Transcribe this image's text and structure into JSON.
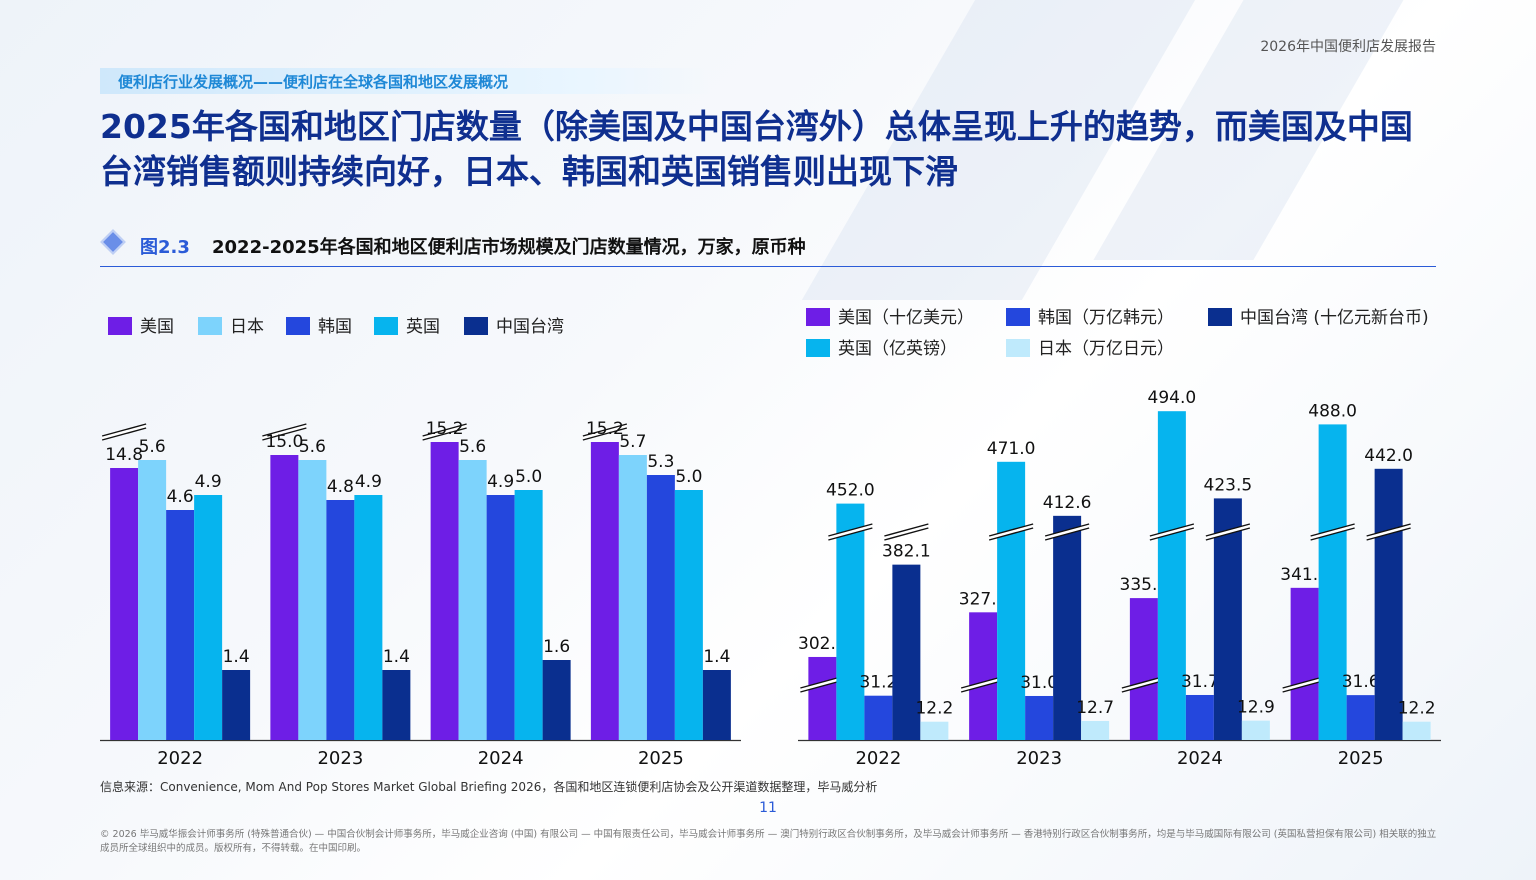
{
  "header": {
    "report_title": "2026年中国便利店发展报告"
  },
  "section_label": "便利店行业发展概况——便利店在全球各国和地区发展概况",
  "headline": "2025年各国和地区门店数量（除美国及中国台湾外）总体呈现上升的趋势，而美国及中国台湾销售额则持续向好，日本、韩国和英国销售则出现下滑",
  "figure": {
    "number": "图2.3",
    "title": "2022-2025年各国和地区便利店市场规模及门店数量情况，万家，原币种"
  },
  "source": "信息来源：Convenience, Mom And Pop Stores Market Global Briefing 2026，各国和地区连锁便利店协会及公开渠道数据整理，毕马威分析",
  "page_number": "11",
  "footer": "© 2026 毕马威华振会计师事务所 (特殊普通合伙) — 中国合伙制会计师事务所，毕马威企业咨询 (中国) 有限公司 — 中国有限责任公司，毕马威会计师事务所 — 澳门特别行政区合伙制事务所，及毕马威会计师事务所 — 香港特别行政区合伙制事务所，均是与毕马威国际有限公司 (英国私营担保有限公司) 相关联的独立成员所全球组织中的成员。版权所有，不得转载。在中国印刷。",
  "chart_data": [
    {
      "type": "bar",
      "categories": [
        "2022",
        "2023",
        "2024",
        "2025"
      ],
      "broken_axis_series": [
        "美国"
      ],
      "series": [
        {
          "name": "美国",
          "color": "#6e1ee6",
          "values": [
            14.8,
            15.0,
            15.2,
            15.2
          ]
        },
        {
          "name": "日本",
          "color": "#7dd3fc",
          "values": [
            5.6,
            5.6,
            5.6,
            5.7
          ]
        },
        {
          "name": "韩国",
          "color": "#2447dd",
          "values": [
            4.6,
            4.8,
            4.9,
            5.3
          ]
        },
        {
          "name": "英国",
          "color": "#06b4ee",
          "values": [
            4.9,
            4.9,
            5.0,
            5.0
          ]
        },
        {
          "name": "中国台湾",
          "color": "#0a2f8f",
          "values": [
            1.4,
            1.4,
            1.6,
            1.4
          ]
        }
      ],
      "value_labels": [
        [
          "14.8",
          "15.0",
          "15.2",
          "15.2"
        ],
        [
          "5.6",
          "5.6",
          "5.6",
          "5.7"
        ],
        [
          "4.6",
          "4.8",
          "4.9",
          "5.3"
        ],
        [
          "4.9",
          "4.9",
          "5.0",
          "5.0"
        ],
        [
          "1.4",
          "1.4",
          "1.6",
          "1.4"
        ]
      ]
    },
    {
      "type": "bar",
      "categories": [
        "2022",
        "2023",
        "2024",
        "2025"
      ],
      "broken_axis_series": [
        "美国（十亿美元）",
        "英国（亿英镑）",
        "中国台湾 (十亿元新台币)"
      ],
      "series": [
        {
          "name": "美国（十亿美元）",
          "color": "#6e1ee6",
          "values": [
            302.8,
            327.6,
            335.5,
            341.2
          ]
        },
        {
          "name": "英国（亿英镑）",
          "color": "#06b4ee",
          "values": [
            452.0,
            471.0,
            494.0,
            488.0
          ]
        },
        {
          "name": "韩国（万亿韩元）",
          "color": "#2447dd",
          "values": [
            31.2,
            31.0,
            31.7,
            31.6
          ]
        },
        {
          "name": "日本（万亿日元）",
          "color": "#bfeafc",
          "values": [
            12.2,
            12.7,
            12.9,
            12.2
          ]
        },
        {
          "name": "中国台湾 (十亿元新台币)",
          "color": "#0a2f8f",
          "values": [
            382.1,
            412.6,
            423.5,
            442.0
          ]
        }
      ],
      "value_labels": [
        [
          "302.8",
          "327.6",
          "335.5",
          "341.2"
        ],
        [
          "452.0",
          "471.0",
          "494.0",
          "488.0"
        ],
        [
          "31.2",
          "31.0",
          "31.7",
          "31.6"
        ],
        [
          "12.2",
          "12.7",
          "12.9",
          "12.2"
        ],
        [
          "382.1",
          "412.6",
          "423.5",
          "442.0"
        ]
      ]
    }
  ]
}
